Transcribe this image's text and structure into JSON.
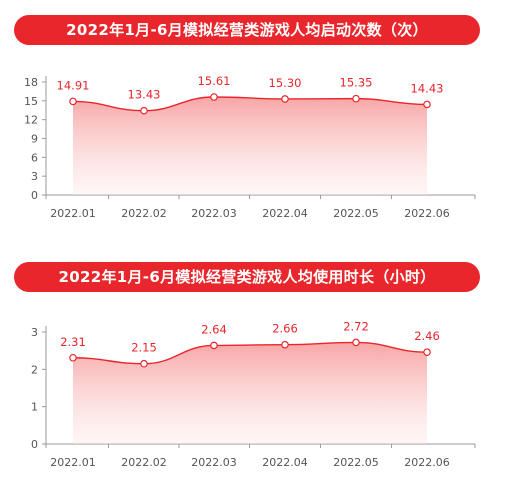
{
  "chart_data": [
    {
      "type": "area",
      "title": "2022年1月-6月模拟经营类游戏人均启动次数（次）",
      "categories": [
        "2022.01",
        "2022.02",
        "2022.03",
        "2022.04",
        "2022.05",
        "2022.06"
      ],
      "values": [
        14.91,
        13.43,
        15.61,
        15.3,
        15.35,
        14.43
      ],
      "value_labels": [
        "14.91",
        "13.43",
        "15.61",
        "15.30",
        "15.35",
        "14.43"
      ],
      "yticks": [
        "0",
        "3",
        "6",
        "9",
        "12",
        "15",
        "18"
      ],
      "ylim": [
        0,
        18
      ],
      "xlabel": "",
      "ylabel": "",
      "grid": false,
      "color": "#e8262b"
    },
    {
      "type": "area",
      "title": "2022年1月-6月模拟经营类游戏人均使用时长（小时）",
      "categories": [
        "2022.01",
        "2022.02",
        "2022.03",
        "2022.04",
        "2022.05",
        "2022.06"
      ],
      "values": [
        2.31,
        2.15,
        2.64,
        2.66,
        2.72,
        2.46
      ],
      "value_labels": [
        "2.31",
        "2.15",
        "2.64",
        "2.66",
        "2.72",
        "2.46"
      ],
      "yticks": [
        "0",
        "1",
        "2",
        "3"
      ],
      "ylim": [
        0,
        3
      ],
      "xlabel": "",
      "ylabel": "",
      "grid": false,
      "color": "#e8262b"
    }
  ]
}
